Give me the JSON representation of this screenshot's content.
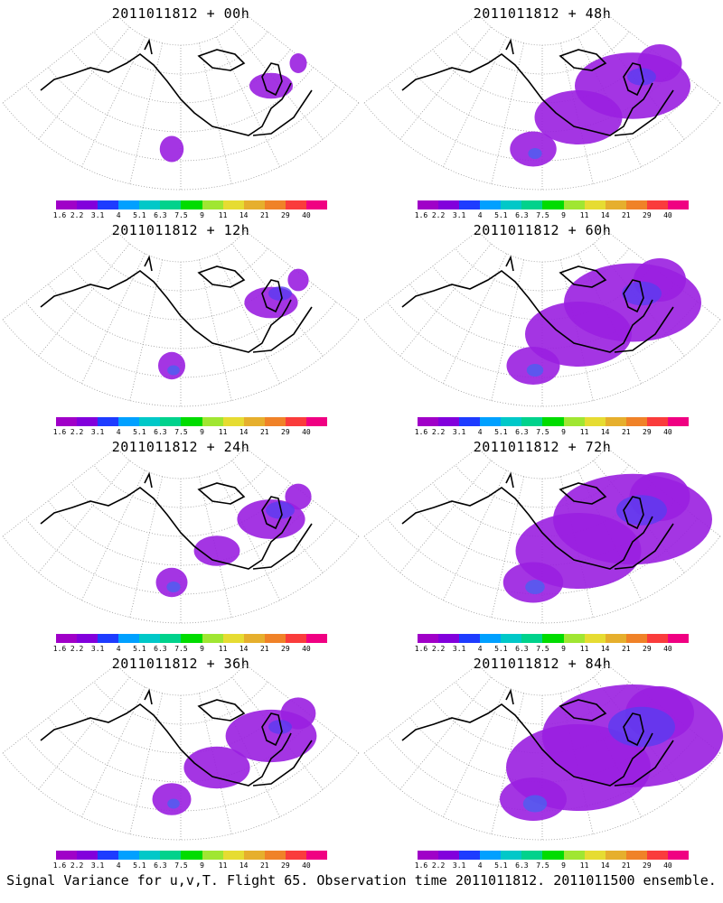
{
  "panels": [
    {
      "title": "2011011812 + 00h",
      "extent": 0.05,
      "blue": 0.0
    },
    {
      "title": "2011011812 + 48h",
      "extent": 0.55,
      "blue": 0.2
    },
    {
      "title": "2011011812 + 12h",
      "extent": 0.12,
      "blue": 0.1
    },
    {
      "title": "2011011812 + 60h",
      "extent": 0.7,
      "blue": 0.4
    },
    {
      "title": "2011011812 + 24h",
      "extent": 0.22,
      "blue": 0.2
    },
    {
      "title": "2011011812 + 72h",
      "extent": 0.85,
      "blue": 0.6
    },
    {
      "title": "2011011812 + 36h",
      "extent": 0.38,
      "blue": 0.1
    },
    {
      "title": "2011011812 + 84h",
      "extent": 1.0,
      "blue": 0.9
    }
  ],
  "colorbar": {
    "labels": [
      "1.6",
      "2.2",
      "3.1",
      "4",
      "5.1",
      "6.3",
      "7.5",
      "9",
      "11",
      "14",
      "21",
      "29",
      "40"
    ],
    "colors": [
      "#a000c8",
      "#8200dc",
      "#1e3cff",
      "#00a0ff",
      "#00c8c8",
      "#00d28c",
      "#00dc00",
      "#a0e632",
      "#e6dc32",
      "#e6af2d",
      "#f08228",
      "#fa3c3c",
      "#f00082"
    ]
  },
  "caption": "Signal Variance for u,v,T. Flight 65. Observation time 2011011812. 2011011500 ensemble."
}
